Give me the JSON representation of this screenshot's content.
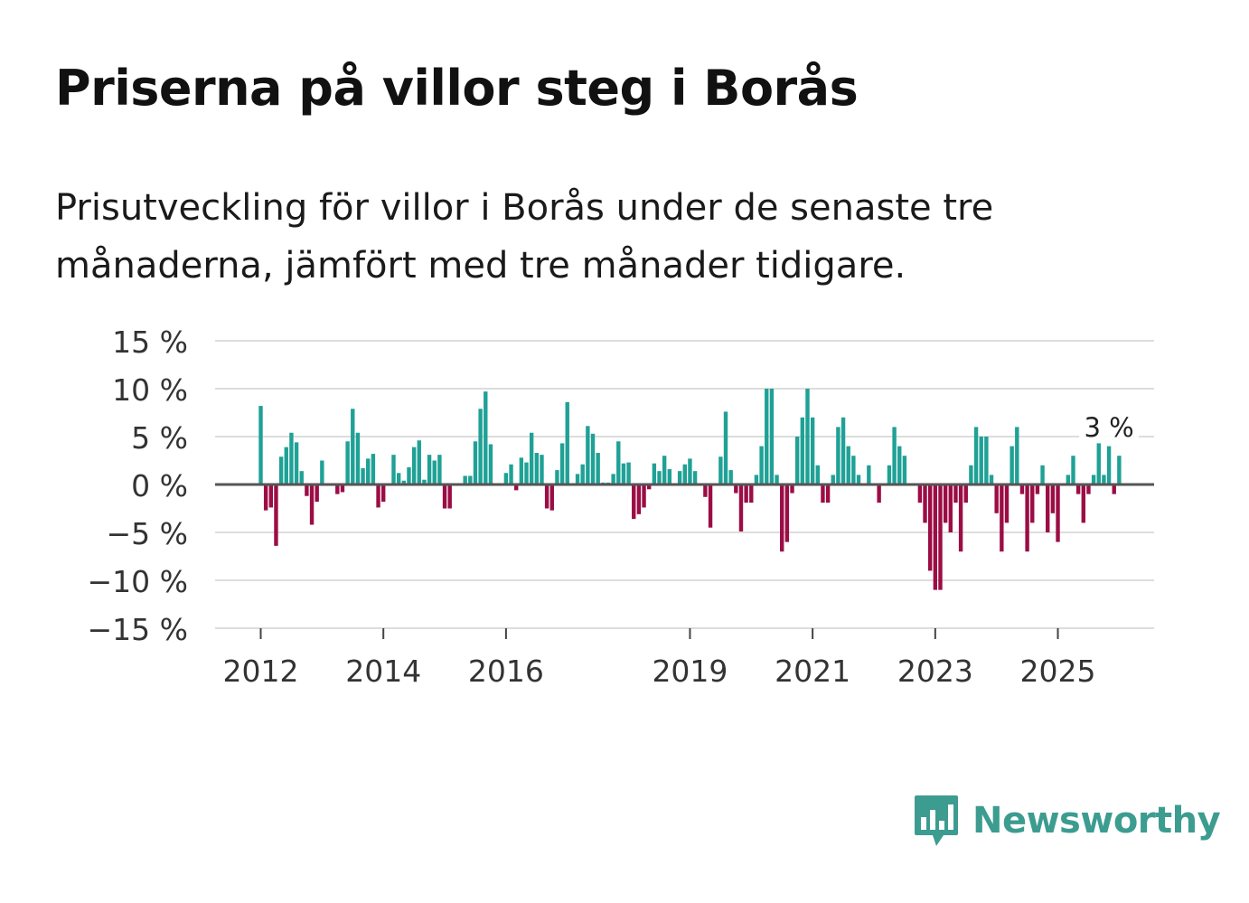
{
  "header": {
    "title": "Priserna på villor steg i Borås",
    "subtitle": "Prisutveckling för villor i Borås under de senaste tre månaderna, jämfört med tre månader tidigare."
  },
  "brand": {
    "name": "Newsworthy"
  },
  "colors": {
    "positive": "#1fa196",
    "negative": "#9b0d45",
    "grid": "#dddddd",
    "zero": "#555555",
    "text": "#333333"
  },
  "chart_data": {
    "type": "bar",
    "title": "Priserna på villor steg i Borås",
    "xlabel": "",
    "ylabel": "",
    "ylim": [
      -15,
      15
    ],
    "yticks": [
      15,
      10,
      5,
      0,
      -5,
      -10,
      -15
    ],
    "ytick_labels": [
      "15 %",
      "10 %",
      "5 %",
      "0 %",
      "−5 %",
      "−10 %",
      "−15 %"
    ],
    "xticks": [
      {
        "label": "2012",
        "at": 0
      },
      {
        "label": "2014",
        "at": 24
      },
      {
        "label": "2016",
        "at": 48
      },
      {
        "label": "2019",
        "at": 84
      },
      {
        "label": "2021",
        "at": 108
      },
      {
        "label": "2023",
        "at": 132
      },
      {
        "label": "2025",
        "at": 156
      }
    ],
    "annotation": {
      "text": "3 %",
      "at": 166
    },
    "values": [
      8.2,
      -2.7,
      -2.4,
      -6.4,
      2.9,
      3.9,
      5.4,
      4.4,
      1.4,
      -1.2,
      -4.2,
      -1.8,
      2.5,
      0,
      0,
      -1,
      -0.8,
      4.5,
      7.9,
      5.4,
      1.7,
      2.7,
      3.2,
      -2.4,
      -1.8,
      0,
      3.1,
      1.2,
      0.4,
      1.8,
      3.9,
      4.6,
      0.5,
      3.1,
      2.5,
      3.1,
      -2.5,
      -2.5,
      0,
      0,
      0.9,
      0.9,
      4.5,
      7.9,
      9.7,
      4.2,
      0,
      0,
      1.2,
      2.1,
      -0.6,
      2.8,
      2.3,
      5.4,
      3.3,
      3.1,
      -2.5,
      -2.7,
      1.5,
      4.3,
      8.6,
      0,
      1.1,
      2.1,
      6.1,
      5.3,
      3.3,
      0.2,
      0.2,
      1.1,
      4.5,
      2.2,
      2.3,
      -3.6,
      -3.1,
      -2.4,
      -0.5,
      2.2,
      1.4,
      3,
      1.6,
      0,
      1.4,
      2.1,
      2.7,
      1.4,
      0,
      -1.3,
      -4.5,
      0,
      2.9,
      7.6,
      1.5,
      -0.9,
      -4.9,
      -1.9,
      -1.9,
      1,
      4,
      10,
      10,
      1,
      -7,
      -6,
      -0.9,
      5,
      7,
      10,
      7,
      2,
      -1.9,
      -1.9,
      1,
      6,
      7,
      4,
      3,
      1,
      0,
      2,
      0,
      -1.9,
      0,
      2,
      6,
      4,
      3,
      0,
      0,
      -1.9,
      -4,
      -9,
      -11,
      -11,
      -4,
      -5,
      -1.9,
      -7,
      -1.9,
      2,
      6,
      5,
      5,
      1,
      -3,
      -7,
      -4,
      4,
      6,
      -1,
      -7,
      -4,
      -1,
      2,
      -5,
      -3,
      -6,
      0,
      1,
      3,
      -1,
      -4,
      -1,
      1,
      4.3,
      1,
      4,
      -1,
      3
    ]
  }
}
